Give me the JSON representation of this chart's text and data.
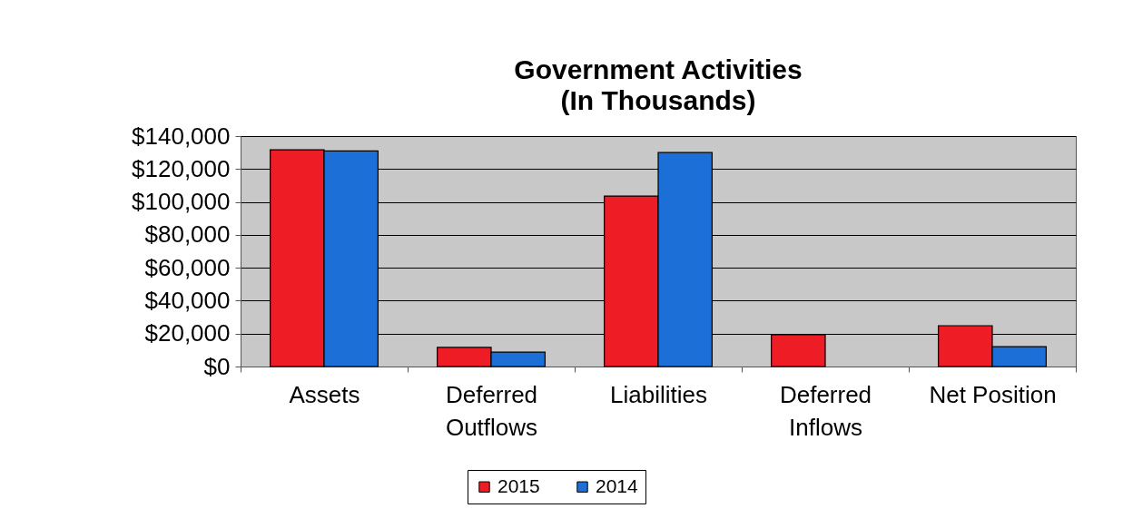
{
  "chart_data": {
    "type": "bar",
    "title": "Government Activities",
    "subtitle": "(In Thousands)",
    "categories": [
      "Assets",
      "Deferred Outflows",
      "Liabilities",
      "Deferred Inflows",
      "Net Position"
    ],
    "series": [
      {
        "name": "2015",
        "color": "#ee1c25",
        "values": [
          131700,
          11600,
          103600,
          19300,
          24800
        ]
      },
      {
        "name": "2014",
        "color": "#1c6fd6",
        "values": [
          131000,
          8800,
          130000,
          null,
          12100
        ]
      }
    ],
    "ylim": [
      0,
      140000
    ],
    "yticks": [
      {
        "value": 0,
        "label": "$0"
      },
      {
        "value": 20000,
        "label": "$20,000"
      },
      {
        "value": 40000,
        "label": "$40,000"
      },
      {
        "value": 60000,
        "label": "$60,000"
      },
      {
        "value": 80000,
        "label": "$80,000"
      },
      {
        "value": 100000,
        "label": "$100,000"
      },
      {
        "value": 120000,
        "label": "$120,000"
      },
      {
        "value": 140000,
        "label": "$140,000"
      }
    ],
    "grid": "y",
    "legend": "bottom"
  }
}
